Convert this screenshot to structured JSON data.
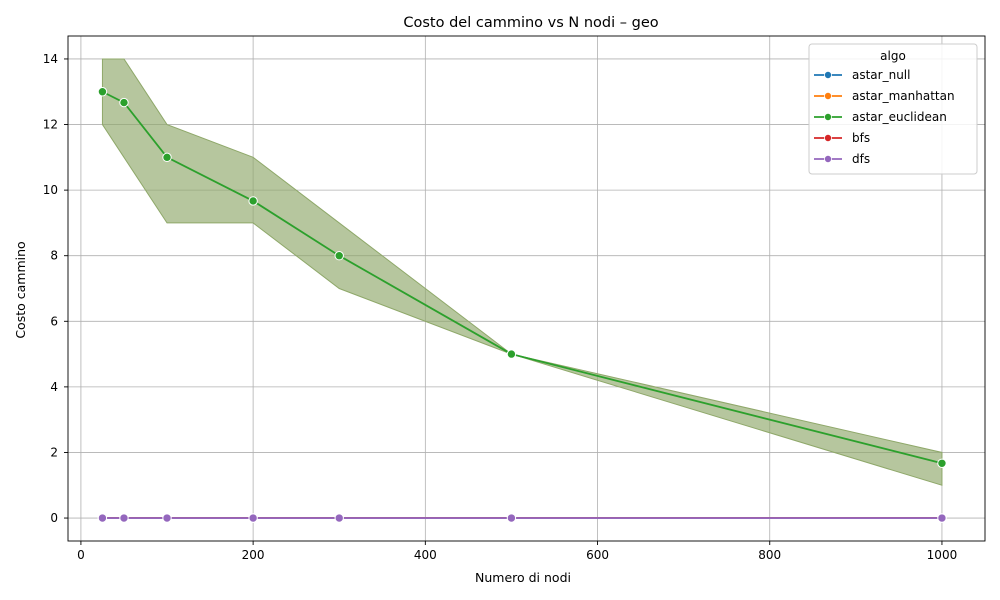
{
  "chart_data": {
    "type": "line",
    "title": "Costo del cammino vs N nodi – geo",
    "xlabel": "Numero di nodi",
    "ylabel": "Costo cammino",
    "xlim": [
      -15,
      1050
    ],
    "ylim": [
      -0.7,
      14.7
    ],
    "xticks": [
      0,
      200,
      400,
      600,
      800,
      1000
    ],
    "yticks": [
      0,
      2,
      4,
      6,
      8,
      10,
      12,
      14
    ],
    "grid": true,
    "legend": {
      "title": "algo",
      "placement": "top-right"
    },
    "x": [
      25,
      50,
      100,
      200,
      300,
      500,
      1000
    ],
    "series": [
      {
        "name": "astar_null",
        "color": "#1f77b4",
        "values": [
          0,
          0,
          0,
          0,
          0,
          0,
          0
        ]
      },
      {
        "name": "astar_manhattan",
        "color": "#ff7f0e",
        "values": [
          0,
          0,
          0,
          0,
          0,
          0,
          0
        ]
      },
      {
        "name": "astar_euclidean",
        "color": "#2ca02c",
        "values": [
          13,
          12.67,
          11,
          9.67,
          8,
          5,
          1.67
        ],
        "band_low": [
          12,
          11,
          9,
          9,
          7,
          5,
          1
        ],
        "band_high": [
          14,
          14,
          12,
          11,
          9,
          5,
          2
        ],
        "band_color": "#8fa86a"
      },
      {
        "name": "bfs",
        "color": "#d62728",
        "values": [
          0,
          0,
          0,
          0,
          0,
          0,
          0
        ]
      },
      {
        "name": "dfs",
        "color": "#9467bd",
        "values": [
          0,
          0,
          0,
          0,
          0,
          0,
          0
        ]
      }
    ]
  }
}
